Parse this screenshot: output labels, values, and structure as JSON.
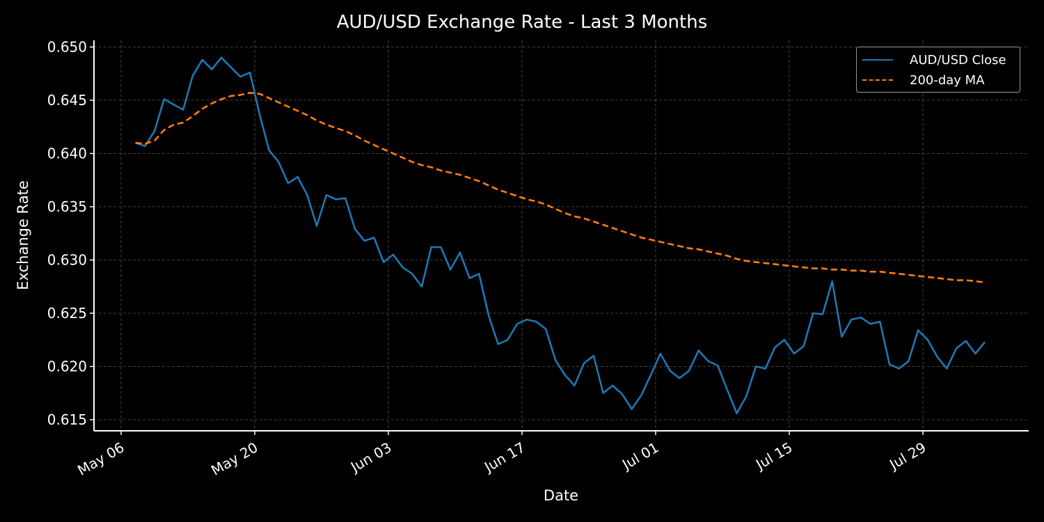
{
  "chart_data": {
    "type": "line",
    "title": "AUD/USD Exchange Rate - Last 3 Months",
    "xlabel": "Date",
    "ylabel": "Exchange Rate",
    "ylim": [
      0.6138,
      0.6506
    ],
    "yticks": [
      "0.615",
      "0.620",
      "0.625",
      "0.630",
      "0.635",
      "0.640",
      "0.645",
      "0.650"
    ],
    "xticks": [
      "May 06",
      "May 20",
      "Jun 03",
      "Jun 17",
      "Jul 01",
      "Jul 15",
      "Jul 29"
    ],
    "grid": true,
    "legend_position": "upper right",
    "x_start_offset_days_from_May06": 1.5,
    "x_step_days": 1,
    "series": [
      {
        "name": "AUD/USD Close",
        "color": "#1f77b4",
        "style": "solid",
        "values": [
          0.641,
          0.6407,
          0.6421,
          0.6451,
          0.6446,
          0.6441,
          0.6473,
          0.6488,
          0.6479,
          0.649,
          0.6481,
          0.6472,
          0.6476,
          0.6437,
          0.6403,
          0.6392,
          0.6372,
          0.6378,
          0.6361,
          0.6332,
          0.6361,
          0.6357,
          0.6358,
          0.6329,
          0.6318,
          0.6321,
          0.6298,
          0.6305,
          0.6293,
          0.6287,
          0.6275,
          0.6312,
          0.6312,
          0.6291,
          0.6307,
          0.6283,
          0.6287,
          0.6248,
          0.6221,
          0.6225,
          0.624,
          0.6244,
          0.6242,
          0.6235,
          0.6206,
          0.6192,
          0.6182,
          0.6203,
          0.621,
          0.6175,
          0.6182,
          0.6174,
          0.616,
          0.6173,
          0.6192,
          0.6212,
          0.6196,
          0.6189,
          0.6196,
          0.6215,
          0.6205,
          0.6201,
          0.6178,
          0.6156,
          0.6172,
          0.62,
          0.6198,
          0.6218,
          0.6225,
          0.6212,
          0.6219,
          0.625,
          0.6249,
          0.628,
          0.6228,
          0.6244,
          0.6246,
          0.624,
          0.6242,
          0.6202,
          0.6198,
          0.6205,
          0.6234,
          0.6225,
          0.6209,
          0.6198,
          0.6217,
          0.6224,
          0.6212,
          0.6223
        ]
      },
      {
        "name": "200-day MA",
        "color": "#ff7f0e",
        "style": "dashed",
        "values": [
          0.641,
          0.6409,
          0.6412,
          0.6422,
          0.6427,
          0.6429,
          0.6435,
          0.6442,
          0.6447,
          0.6451,
          0.6454,
          0.6455,
          0.6457,
          0.6456,
          0.6452,
          0.6448,
          0.6444,
          0.644,
          0.6436,
          0.6431,
          0.6427,
          0.6424,
          0.6421,
          0.6417,
          0.6412,
          0.6408,
          0.6404,
          0.64,
          0.6396,
          0.6392,
          0.6389,
          0.6387,
          0.6384,
          0.6382,
          0.638,
          0.6377,
          0.6374,
          0.637,
          0.6366,
          0.6363,
          0.636,
          0.6357,
          0.6355,
          0.6352,
          0.6348,
          0.6344,
          0.6341,
          0.6339,
          0.6336,
          0.6333,
          0.633,
          0.6327,
          0.6324,
          0.6321,
          0.6319,
          0.6317,
          0.6315,
          0.6313,
          0.6311,
          0.631,
          0.6308,
          0.6306,
          0.6304,
          0.6301,
          0.6299,
          0.6298,
          0.6297,
          0.6296,
          0.6295,
          0.6294,
          0.6293,
          0.6292,
          0.6292,
          0.6291,
          0.6291,
          0.629,
          0.629,
          0.6289,
          0.6289,
          0.6288,
          0.6287,
          0.6286,
          0.6285,
          0.6284,
          0.6283,
          0.6282,
          0.6281,
          0.6281,
          0.628,
          0.6279
        ]
      }
    ]
  },
  "legend": {
    "items": [
      {
        "label": "AUD/USD Close",
        "color": "#1f77b4"
      },
      {
        "label": "200-day MA",
        "color": "#ff7f0e"
      }
    ]
  },
  "colors": {
    "background": "#000000",
    "grid": "#555555",
    "axis": "#ffffff",
    "text": "#ffffff"
  }
}
